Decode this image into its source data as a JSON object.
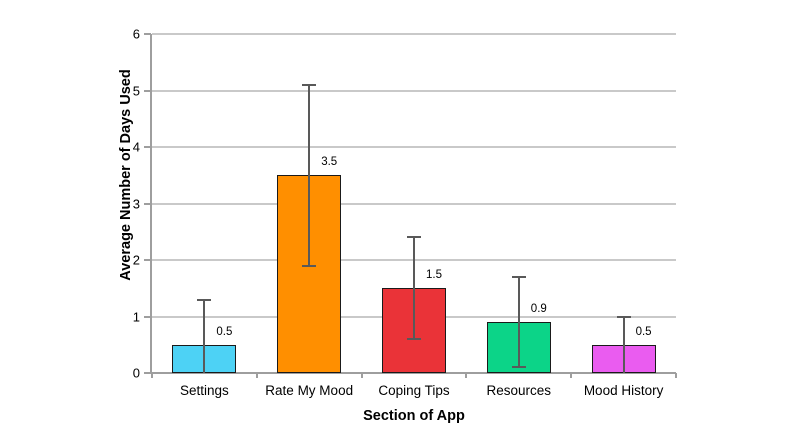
{
  "chart_data": {
    "type": "bar",
    "title": "",
    "xlabel": "Section of App",
    "ylabel": "Average Number of Days Used",
    "ylim": [
      0,
      6
    ],
    "yticks": [
      0,
      1,
      2,
      3,
      4,
      5,
      6
    ],
    "grid": true,
    "legend": "none",
    "categories": [
      "Settings",
      "Rate My Mood",
      "Coping Tips",
      "Resources",
      "Mood History"
    ],
    "values": [
      0.5,
      3.5,
      1.5,
      0.9,
      0.5
    ],
    "value_labels": [
      "0.5",
      "3.5",
      "1.5",
      "0.9",
      "0.5"
    ],
    "error_bar_upper": [
      1.3,
      5.1,
      2.4,
      1.7,
      1.0
    ],
    "error_bar_lower": [
      0,
      1.9,
      0.6,
      0.1,
      0
    ],
    "bar_colors": [
      "#4dd2f5",
      "#ff8f00",
      "#ea3338",
      "#0cd488",
      "#ea5cf0"
    ],
    "bar_border_color": "#1a1a1a",
    "error_bar_color": "#595959",
    "grid_color": "#c9c9c9",
    "axis_color": "#9e9e9e",
    "background_color": "#ffffff"
  }
}
